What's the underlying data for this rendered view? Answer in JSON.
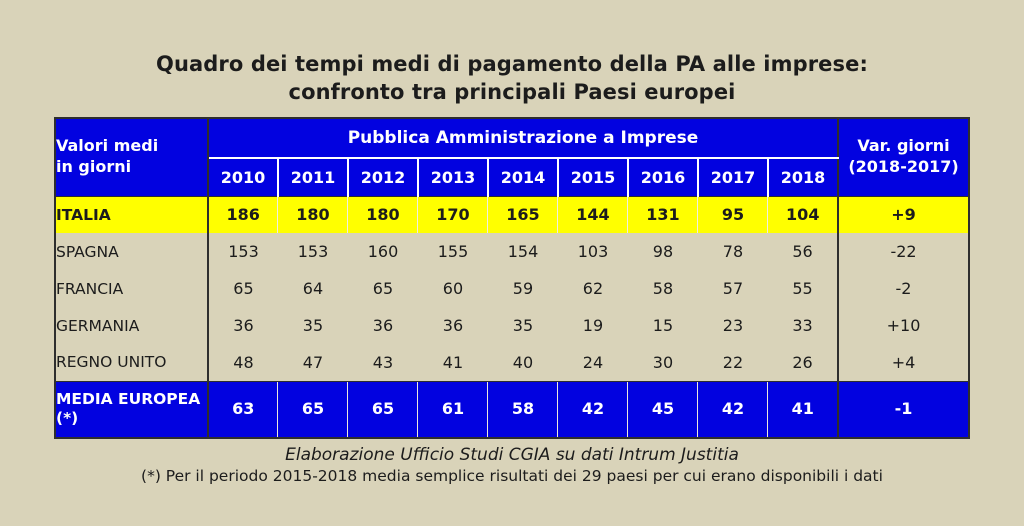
{
  "title": {
    "line1": "Quadro dei tempi medi di pagamento della PA alle imprese:",
    "line2": "confronto tra principali Paesi europei"
  },
  "colors": {
    "page_background": "#d9d3b9",
    "header_blue": "#0202e0",
    "highlight_yellow": "#ffff00",
    "header_text": "#ffffff",
    "body_text": "#1c1c1c"
  },
  "chart_data": {
    "type": "table",
    "title": "Quadro dei tempi medi di pagamento della PA alle imprese: confronto tra principali Paesi europei",
    "corner_header_lines": [
      "Valori medi",
      "in giorni"
    ],
    "group_header": "Pubblica Amministrazione a Imprese",
    "var_header_lines": [
      "Var. giorni",
      "(2018-2017)"
    ],
    "years": [
      "2010",
      "2011",
      "2012",
      "2013",
      "2014",
      "2015",
      "2016",
      "2017",
      "2018"
    ],
    "rows": [
      {
        "label": "ITALIA",
        "values": [
          186,
          180,
          180,
          170,
          165,
          144,
          131,
          95,
          104
        ],
        "variation": "+9",
        "style": "highlight"
      },
      {
        "label": "SPAGNA",
        "values": [
          153,
          153,
          160,
          155,
          154,
          103,
          98,
          78,
          56
        ],
        "variation": "-22",
        "style": "normal"
      },
      {
        "label": "FRANCIA",
        "values": [
          65,
          64,
          65,
          60,
          59,
          62,
          58,
          57,
          55
        ],
        "variation": "-2",
        "style": "normal"
      },
      {
        "label": "GERMANIA",
        "values": [
          36,
          35,
          36,
          36,
          35,
          19,
          15,
          23,
          33
        ],
        "variation": "+10",
        "style": "normal"
      },
      {
        "label": "REGNO UNITO",
        "values": [
          48,
          47,
          43,
          41,
          40,
          24,
          30,
          22,
          26
        ],
        "variation": "+4",
        "style": "normal"
      },
      {
        "label": "MEDIA EUROPEA (*)",
        "values": [
          63,
          65,
          65,
          61,
          58,
          42,
          45,
          42,
          41
        ],
        "variation": "-1",
        "style": "media"
      }
    ],
    "source": "Elaborazione Ufficio Studi CGIA su dati Intrum Justitia",
    "footnote": "(*) Per il periodo 2015-2018 media semplice risultati dei 29 paesi per cui erano disponibili i dati"
  }
}
